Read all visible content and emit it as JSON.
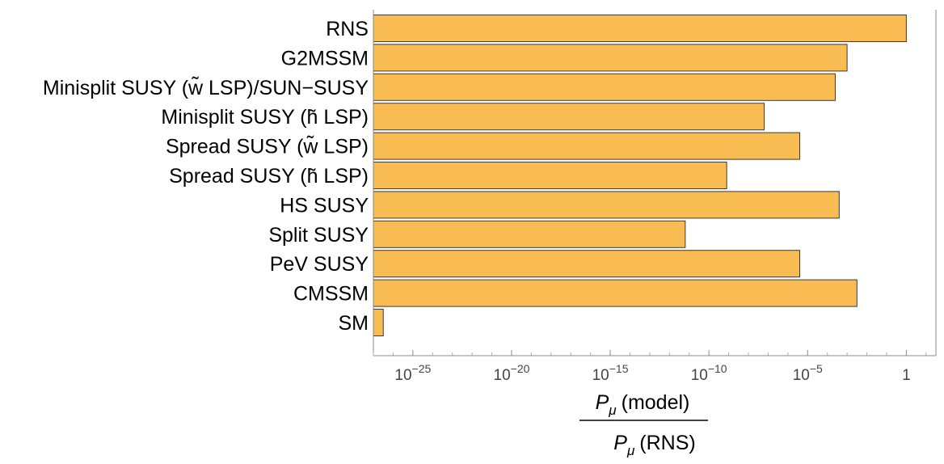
{
  "chart_data": {
    "type": "bar",
    "orientation": "horizontal",
    "categories": [
      "RNS",
      "G2MSSM",
      "Minisplit SUSY (w̃ LSP)/SUN−SUSY",
      "Minisplit SUSY (h̃ LSP)",
      "Spread SUSY (w̃ LSP)",
      "Spread SUSY (h̃ LSP)",
      "HS SUSY",
      "Split SUSY",
      "PeV SUSY",
      "CMSSM",
      "SM"
    ],
    "values_log10": [
      0,
      -3,
      -3.6,
      -7.2,
      -5.4,
      -9.1,
      -3.4,
      -11.2,
      -5.4,
      -2.5,
      -26.5
    ],
    "x_scale": "log10",
    "xlim_log10": [
      -27,
      1.5
    ],
    "x_ticks": [
      {
        "exp": -25,
        "base": "10",
        "sup": "−25"
      },
      {
        "exp": -20,
        "base": "10",
        "sup": "−20"
      },
      {
        "exp": -15,
        "base": "10",
        "sup": "−15"
      },
      {
        "exp": -10,
        "base": "10",
        "sup": "−10"
      },
      {
        "exp": -5,
        "base": "10",
        "sup": "−5"
      },
      {
        "exp": 0,
        "base": "1",
        "sup": ""
      }
    ],
    "xlabel": {
      "numerator_symbol": "P",
      "numerator_sub": "μ",
      "numerator_text": "(model)",
      "denominator_symbol": "P",
      "denominator_sub": "μ",
      "denominator_text": "(RNS)"
    },
    "bar_color": "#f9bc52",
    "bar_edge_color": "#3a3a3a",
    "grid": false
  }
}
